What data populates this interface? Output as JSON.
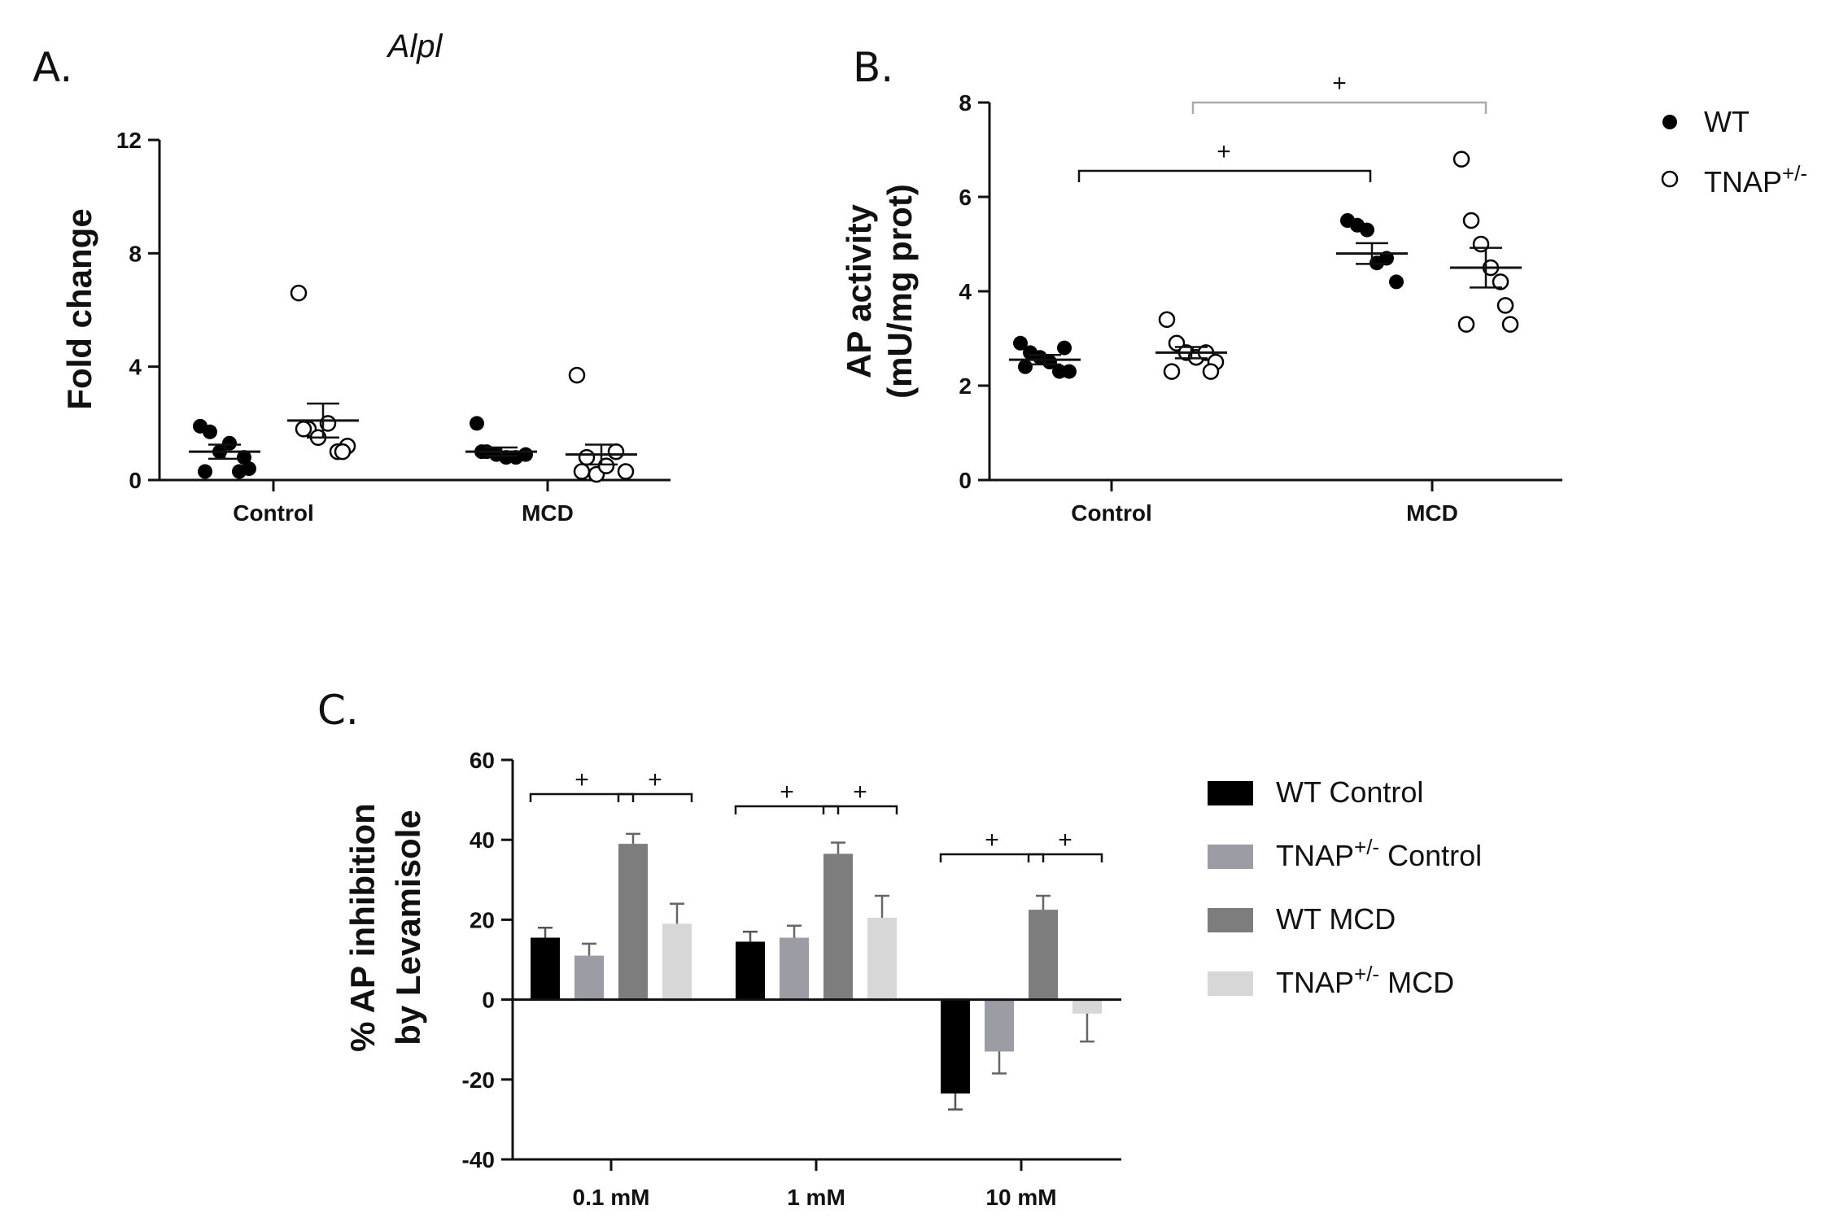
{
  "chart_data": [
    {
      "panel": "A.",
      "type": "scatter",
      "title": "Alpl",
      "ylabel": "Fold change",
      "xlabel": "",
      "ylim": [
        0,
        12
      ],
      "yticks": [
        "0",
        "4",
        "8",
        "12"
      ],
      "categories": [
        "Control",
        "MCD"
      ],
      "series": [
        {
          "name": "WT",
          "marker": "filled",
          "points": {
            "Control": [
              1.9,
              1.7,
              1.0,
              1.3,
              0.3,
              0.4,
              0.3,
              0.8
            ],
            "MCD": [
              2.0,
              1.0,
              0.9,
              0.8,
              0.8,
              0.9,
              1.0
            ]
          },
          "mean": [
            1.0,
            1.0
          ],
          "sem": [
            0.25,
            0.15
          ]
        },
        {
          "name": "TNAP+/-",
          "marker": "open",
          "points": {
            "Control": [
              6.6,
              1.8,
              1.5,
              2.0,
              1.0,
              1.2,
              1.8,
              1.0
            ],
            "MCD": [
              3.7,
              0.8,
              0.2,
              0.5,
              1.0,
              0.3,
              0.3
            ]
          },
          "mean": [
            2.1,
            0.9
          ],
          "sem": [
            0.6,
            0.35
          ]
        }
      ]
    },
    {
      "panel": "B.",
      "type": "scatter",
      "title": "",
      "ylabel": "AP activity",
      "ylabel2": "(mU/mg prot)",
      "ylim": [
        0,
        8
      ],
      "yticks": [
        "0",
        "2",
        "4",
        "6",
        "8"
      ],
      "categories": [
        "Control",
        "MCD"
      ],
      "series": [
        {
          "name": "WT",
          "marker": "filled",
          "points": {
            "Control": [
              2.9,
              2.7,
              2.6,
              2.5,
              2.3,
              2.3,
              2.4,
              2.8
            ],
            "MCD": [
              5.5,
              5.4,
              5.3,
              4.6,
              4.7,
              4.2
            ]
          },
          "mean": [
            2.55,
            4.8
          ],
          "sem": [
            0.1,
            0.22
          ]
        },
        {
          "name": "TNAP+/-",
          "marker": "open",
          "points": {
            "Control": [
              3.4,
              2.9,
              2.7,
              2.6,
              2.7,
              2.5,
              2.3,
              2.3
            ],
            "MCD": [
              6.8,
              5.5,
              5.0,
              4.5,
              4.2,
              3.3,
              3.3,
              3.7
            ]
          },
          "mean": [
            2.7,
            4.5
          ],
          "sem": [
            0.12,
            0.42
          ]
        }
      ],
      "significance": [
        {
          "from": "WT Control",
          "to": "WT MCD",
          "label": "+"
        },
        {
          "from": "TNAP+/- Control",
          "to": "TNAP+/- MCD",
          "label": "+"
        }
      ],
      "legend": [
        {
          "name": "WT",
          "base": "WT",
          "sup": ""
        },
        {
          "name": "TNAP+/-",
          "base": "TNAP",
          "sup": "+/-"
        }
      ]
    },
    {
      "panel": "C.",
      "type": "bar",
      "ylabel": "% AP inhibition",
      "ylabel2": "by Levamisole",
      "ylim": [
        -40,
        60
      ],
      "yticks": [
        "-40",
        "-20",
        "0",
        "20",
        "40",
        "60"
      ],
      "categories": [
        "0.1 mM",
        "1 mM",
        "10 mM"
      ],
      "series": [
        {
          "name": "WT Control",
          "color": "#000000",
          "values": [
            15.5,
            14.5,
            -23.5
          ],
          "errors": [
            2.5,
            2.5,
            4.0
          ]
        },
        {
          "name": "TNAP+/- Control",
          "color": "#9c9ca4",
          "values": [
            11.0,
            15.5,
            -13.0
          ],
          "errors": [
            3.0,
            3.0,
            5.5
          ]
        },
        {
          "name": "WT MCD",
          "color": "#7d7d7d",
          "values": [
            39.0,
            36.5,
            22.5
          ],
          "errors": [
            2.5,
            2.8,
            3.5
          ]
        },
        {
          "name": "TNAP+/- MCD",
          "color": "#d7d7d7",
          "values": [
            19.0,
            20.5,
            -3.5
          ],
          "errors": [
            5.0,
            5.5,
            7.0
          ]
        }
      ],
      "significance": [
        {
          "category": "0.1 mM",
          "from": "WT Control",
          "to": "WT MCD",
          "label": "+"
        },
        {
          "category": "0.1 mM",
          "from": "WT MCD",
          "to": "TNAP+/- MCD",
          "label": "+"
        },
        {
          "category": "1 mM",
          "from": "WT Control",
          "to": "WT MCD",
          "label": "+"
        },
        {
          "category": "1 mM",
          "from": "WT MCD",
          "to": "TNAP+/- MCD",
          "label": "+"
        },
        {
          "category": "10 mM",
          "from": "WT Control",
          "to": "WT MCD",
          "label": "+"
        },
        {
          "category": "10 mM",
          "from": "WT MCD",
          "to": "TNAP+/- MCD",
          "label": "+"
        }
      ],
      "legend": [
        {
          "name": "WT Control",
          "base": "WT Control",
          "sup": "",
          "after": ""
        },
        {
          "name": "TNAP+/- Control",
          "base": "TNAP",
          "sup": "+/-",
          "after": " Control"
        },
        {
          "name": "WT MCD",
          "base": "WT MCD",
          "sup": "",
          "after": ""
        },
        {
          "name": "TNAP+/- MCD",
          "base": "TNAP",
          "sup": "+/-",
          "after": " MCD"
        }
      ]
    }
  ]
}
